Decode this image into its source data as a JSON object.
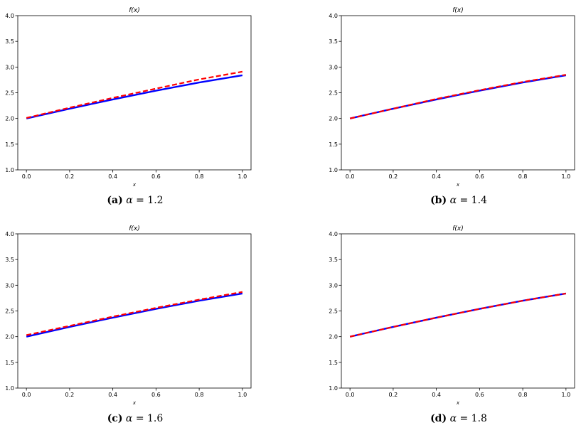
{
  "chart_data": [
    {
      "type": "line",
      "title": "f(x)",
      "xlabel": "x",
      "xlim": [
        -0.04,
        1.04
      ],
      "ylim": [
        1.0,
        4.0
      ],
      "xticks": [
        "0.0",
        "0.2",
        "0.4",
        "0.6",
        "0.8",
        "1.0"
      ],
      "yticks": [
        "1.0",
        "1.5",
        "2.0",
        "2.5",
        "3.0",
        "3.5",
        "4.0"
      ],
      "series": [
        {
          "style": "solid",
          "color": "#0000ff",
          "x": [
            0.0,
            0.2,
            0.4,
            0.6,
            0.8,
            1.0
          ],
          "y": [
            2.0,
            2.19,
            2.37,
            2.54,
            2.7,
            2.84
          ]
        },
        {
          "style": "dashed",
          "color": "#ff0000",
          "x": [
            0.0,
            0.2,
            0.4,
            0.6,
            0.8,
            1.0
          ],
          "y": [
            2.01,
            2.21,
            2.4,
            2.58,
            2.76,
            2.91
          ]
        }
      ],
      "caption": {
        "label": "(a)",
        "symbol": "α",
        "text": "= 1.2"
      }
    },
    {
      "type": "line",
      "title": "f(x)",
      "xlabel": "x",
      "xlim": [
        -0.04,
        1.04
      ],
      "ylim": [
        1.0,
        4.0
      ],
      "xticks": [
        "0.0",
        "0.2",
        "0.4",
        "0.6",
        "0.8",
        "1.0"
      ],
      "yticks": [
        "1.0",
        "1.5",
        "2.0",
        "2.5",
        "3.0",
        "3.5",
        "4.0"
      ],
      "series": [
        {
          "style": "solid",
          "color": "#0000ff",
          "x": [
            0.0,
            0.2,
            0.4,
            0.6,
            0.8,
            1.0
          ],
          "y": [
            2.0,
            2.19,
            2.37,
            2.54,
            2.7,
            2.84
          ]
        },
        {
          "style": "dashed",
          "color": "#ff0000",
          "x": [
            0.0,
            0.2,
            0.4,
            0.6,
            0.8,
            1.0
          ],
          "y": [
            2.0,
            2.19,
            2.38,
            2.55,
            2.71,
            2.85
          ]
        }
      ],
      "caption": {
        "label": "(b)",
        "symbol": "α",
        "text": "= 1.4"
      }
    },
    {
      "type": "line",
      "title": "f(x)",
      "xlabel": "x",
      "xlim": [
        -0.04,
        1.04
      ],
      "ylim": [
        1.0,
        4.0
      ],
      "xticks": [
        "0.0",
        "0.2",
        "0.4",
        "0.6",
        "0.8",
        "1.0"
      ],
      "yticks": [
        "1.0",
        "1.5",
        "2.0",
        "2.5",
        "3.0",
        "3.5",
        "4.0"
      ],
      "series": [
        {
          "style": "solid",
          "color": "#0000ff",
          "x": [
            0.0,
            0.2,
            0.4,
            0.6,
            0.8,
            1.0
          ],
          "y": [
            2.0,
            2.19,
            2.37,
            2.54,
            2.7,
            2.84
          ]
        },
        {
          "style": "dashed",
          "color": "#ff0000",
          "x": [
            0.0,
            0.2,
            0.4,
            0.6,
            0.8,
            1.0
          ],
          "y": [
            2.03,
            2.21,
            2.39,
            2.56,
            2.72,
            2.87
          ]
        }
      ],
      "caption": {
        "label": "(c)",
        "symbol": "α",
        "text": "= 1.6"
      }
    },
    {
      "type": "line",
      "title": "f(x)",
      "xlabel": "x",
      "xlim": [
        -0.04,
        1.04
      ],
      "ylim": [
        1.0,
        4.0
      ],
      "xticks": [
        "0.0",
        "0.2",
        "0.4",
        "0.6",
        "0.8",
        "1.0"
      ],
      "yticks": [
        "1.0",
        "1.5",
        "2.0",
        "2.5",
        "3.0",
        "3.5",
        "4.0"
      ],
      "series": [
        {
          "style": "solid",
          "color": "#0000ff",
          "x": [
            0.0,
            0.2,
            0.4,
            0.6,
            0.8,
            1.0
          ],
          "y": [
            2.0,
            2.19,
            2.37,
            2.54,
            2.7,
            2.84
          ]
        },
        {
          "style": "dashed",
          "color": "#ff0000",
          "x": [
            0.0,
            0.2,
            0.4,
            0.6,
            0.8,
            1.0
          ],
          "y": [
            2.0,
            2.19,
            2.37,
            2.54,
            2.7,
            2.84
          ]
        }
      ],
      "caption": {
        "label": "(d)",
        "symbol": "α",
        "text": "= 1.8"
      }
    }
  ]
}
